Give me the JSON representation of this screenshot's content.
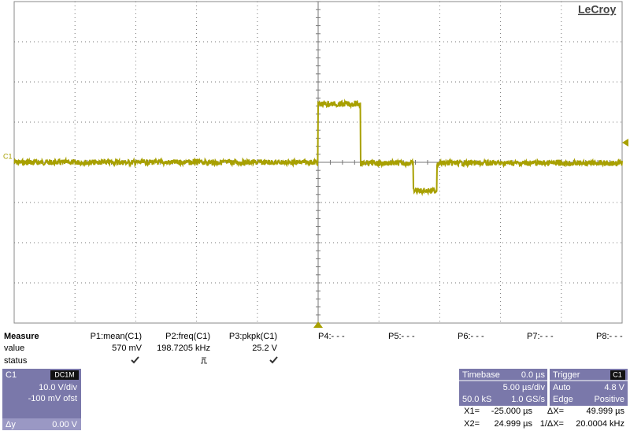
{
  "brand": "LeCroy",
  "channel_marker": "C1",
  "measure": {
    "headers": [
      "Measure",
      "P1:mean(C1)",
      "P2:freq(C1)",
      "P3:pkpk(C1)",
      "P4:- - -",
      "P5:- - -",
      "P6:- - -",
      "P7:- - -",
      "P8:- - -"
    ],
    "value_row": [
      "value",
      "570 mV",
      "198.7205 kHz",
      "25.2 V"
    ],
    "status_label": "status"
  },
  "channel_box": {
    "name": "C1",
    "coupling": "DC1M",
    "scale": "10.0 V/div",
    "offset": "-100 mV ofst",
    "dy_label": "Δy",
    "dy_value": "0.00 V"
  },
  "timebase": {
    "title": "Timebase",
    "delay": "0.0 µs",
    "scale": "5.00 µs/div",
    "samples": "50.0 kS",
    "rate": "1.0 GS/s"
  },
  "trigger": {
    "title": "Trigger",
    "source": "C1",
    "mode": "Auto",
    "level": "4.8 V",
    "type": "Edge",
    "slope": "Positive"
  },
  "cursors": {
    "x1_label": "X1=",
    "x1": "-25.000 µs",
    "dx_label": "ΔX=",
    "dx": "49.999 µs",
    "x2_label": "X2=",
    "x2": "24.999 µs",
    "inv_label": "1/ΔX=",
    "inv": "20.0004 kHz"
  }
}
